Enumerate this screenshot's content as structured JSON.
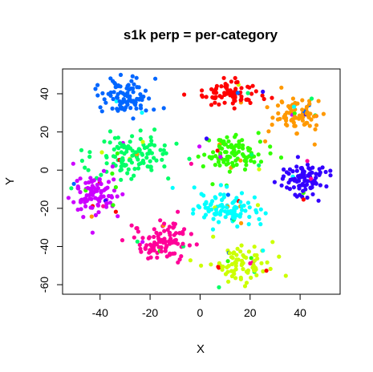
{
  "chart_data": {
    "type": "scatter",
    "title": "s1k perp = per-category",
    "xlabel": "X",
    "ylabel": "Y",
    "xlim": [
      -55,
      56
    ],
    "ylim": [
      -65,
      53
    ],
    "xticks": [
      -40,
      -20,
      0,
      20,
      40
    ],
    "yticks": [
      -60,
      -40,
      -20,
      0,
      20,
      40
    ],
    "grid": false,
    "legend": "none",
    "clusters": [
      {
        "color": "#0066ff",
        "center": [
          -30,
          38
        ],
        "spread": [
          7,
          6
        ],
        "count": 95
      },
      {
        "color": "#ff0000",
        "center": [
          13,
          40
        ],
        "spread": [
          7,
          4
        ],
        "count": 85
      },
      {
        "color": "#ff9900",
        "center": [
          39,
          29
        ],
        "spread": [
          6,
          5
        ],
        "count": 85
      },
      {
        "color": "#00ff66",
        "center": [
          -27,
          8
        ],
        "spread": [
          9,
          6
        ],
        "count": 120
      },
      {
        "color": "#33ff00",
        "center": [
          13,
          8
        ],
        "spread": [
          8,
          6
        ],
        "count": 110
      },
      {
        "color": "#3300ff",
        "center": [
          42,
          -5
        ],
        "spread": [
          6,
          5
        ],
        "count": 95
      },
      {
        "color": "#cc00ff",
        "center": [
          -41,
          -13
        ],
        "spread": [
          7,
          7
        ],
        "count": 100
      },
      {
        "color": "#00ffff",
        "center": [
          12,
          -20
        ],
        "spread": [
          8,
          6
        ],
        "count": 100
      },
      {
        "color": "#ff0099",
        "center": [
          -15,
          -37
        ],
        "spread": [
          7,
          6
        ],
        "count": 105
      },
      {
        "color": "#ccff00",
        "center": [
          17,
          -50
        ],
        "spread": [
          7,
          5
        ],
        "count": 85
      }
    ]
  }
}
